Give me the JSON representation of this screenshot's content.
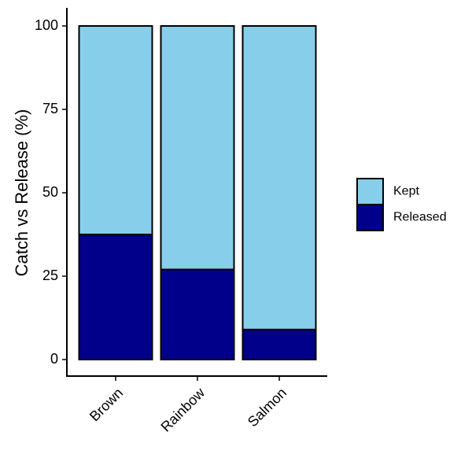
{
  "chart_data": {
    "type": "bar",
    "stacked": true,
    "categories": [
      "Brown",
      "Rainbow",
      "Salmon"
    ],
    "series": [
      {
        "name": "Released",
        "values": [
          37.5,
          27,
          9
        ]
      },
      {
        "name": "Kept",
        "values": [
          62.5,
          73,
          91
        ]
      }
    ],
    "xlabel": "",
    "ylabel": "Catch vs Release (%)",
    "ylim": [
      0,
      100
    ],
    "yticks": [
      0,
      25,
      50,
      75,
      100
    ],
    "yticks_labels": [
      "0",
      "25",
      "50",
      "75",
      "100"
    ],
    "grid": false,
    "legend": {
      "placement": "right",
      "items": [
        {
          "label": "Kept",
          "color": "#87CEEB"
        },
        {
          "label": "Released",
          "color": "#00008B"
        }
      ]
    },
    "colors": {
      "Kept": "#87CEEB",
      "Released": "#00008B",
      "outline": "#000000"
    }
  }
}
